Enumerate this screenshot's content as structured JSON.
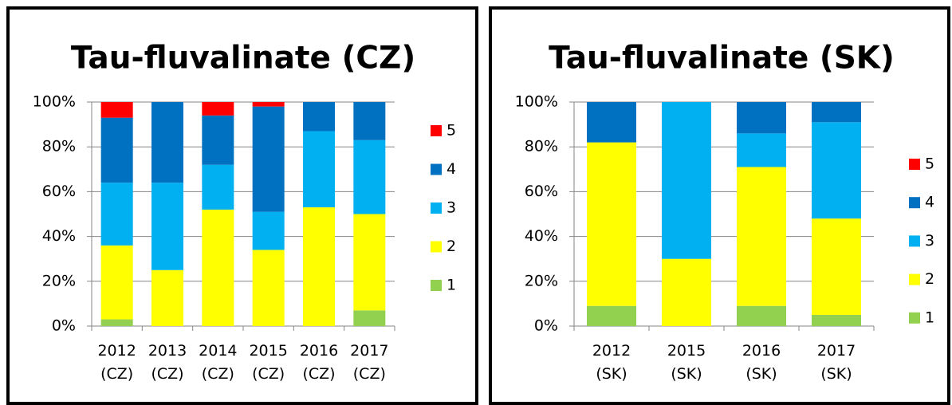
{
  "chart_data": [
    {
      "type": "bar",
      "stacked": true,
      "title": "Tau-fluvalinate (CZ)",
      "categories": [
        "2012\n(CZ)",
        "2013\n(CZ)",
        "2014\n(CZ)",
        "2015\n(CZ)",
        "2016\n(CZ)",
        "2017\n(CZ)"
      ],
      "series": [
        {
          "name": "1",
          "color": "#92d050",
          "values": [
            3,
            0,
            0,
            0,
            0,
            7
          ]
        },
        {
          "name": "2",
          "color": "#ffff00",
          "values": [
            33,
            25,
            52,
            34,
            53,
            43
          ]
        },
        {
          "name": "3",
          "color": "#00b0f0",
          "values": [
            28,
            39,
            20,
            17,
            34,
            33
          ]
        },
        {
          "name": "4",
          "color": "#0070c0",
          "values": [
            29,
            36,
            22,
            47,
            13,
            17
          ]
        },
        {
          "name": "5",
          "color": "#ff0000",
          "values": [
            7,
            0,
            6,
            2,
            0,
            0
          ]
        }
      ],
      "ylim": [
        0,
        100
      ],
      "yticks": [
        {
          "value": 0,
          "label": "0%"
        },
        {
          "value": 20,
          "label": "20%"
        },
        {
          "value": 40,
          "label": "40%"
        },
        {
          "value": 60,
          "label": "60%"
        },
        {
          "value": 80,
          "label": "80%"
        },
        {
          "value": 100,
          "label": "100%"
        }
      ],
      "grid": true,
      "legend": "right"
    },
    {
      "type": "bar",
      "stacked": true,
      "title": "Tau-fluvalinate (SK)",
      "categories": [
        "2012\n(SK)",
        "2015\n(SK)",
        "2016\n(SK)",
        "2017\n(SK)"
      ],
      "series": [
        {
          "name": "1",
          "color": "#92d050",
          "values": [
            9,
            0,
            9,
            5
          ]
        },
        {
          "name": "2",
          "color": "#ffff00",
          "values": [
            73,
            30,
            62,
            43
          ]
        },
        {
          "name": "3",
          "color": "#00b0f0",
          "values": [
            0,
            70,
            15,
            43
          ]
        },
        {
          "name": "4",
          "color": "#0070c0",
          "values": [
            18,
            0,
            14,
            9
          ]
        },
        {
          "name": "5",
          "color": "#ff0000",
          "values": [
            0,
            0,
            0,
            0
          ]
        }
      ],
      "ylim": [
        0,
        100
      ],
      "yticks": [
        {
          "value": 0,
          "label": "0%"
        },
        {
          "value": 20,
          "label": "20%"
        },
        {
          "value": 40,
          "label": "40%"
        },
        {
          "value": 60,
          "label": "60%"
        },
        {
          "value": 80,
          "label": "80%"
        },
        {
          "value": 100,
          "label": "100%"
        }
      ],
      "grid": true,
      "legend": "right"
    }
  ]
}
